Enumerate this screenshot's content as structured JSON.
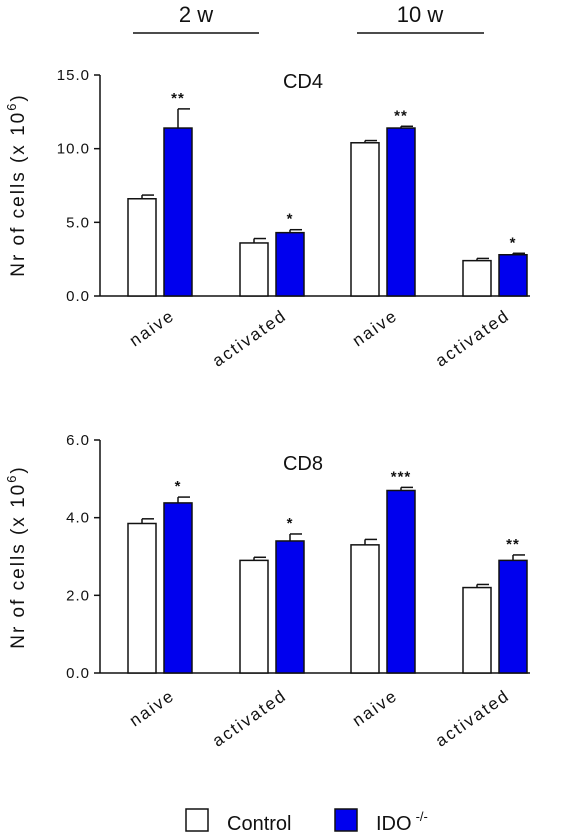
{
  "groups": [
    "2 w",
    "10 w"
  ],
  "legend": {
    "control": {
      "label": "Control",
      "color": "#ffffff"
    },
    "ido": {
      "label": "IDO",
      "superscript": "-/-",
      "color": "#0000ee"
    }
  },
  "ylabel_main": "Nr of cells (x 10",
  "ylabel_exp": "6",
  "ylabel_close": ")",
  "chart_data": [
    {
      "type": "bar",
      "title": "CD4",
      "ylabel": "Nr of cells (x 10^6)",
      "ylim": [
        0,
        15
      ],
      "yticks": [
        "0.0",
        "5.0",
        "10.0",
        "15.0"
      ],
      "ytick_values": [
        0,
        5,
        10,
        15
      ],
      "categories": [
        "naive",
        "activated",
        "naive",
        "activated"
      ],
      "groups": [
        "2 w",
        "2 w",
        "10 w",
        "10 w"
      ],
      "series": [
        {
          "name": "Control",
          "values": [
            6.6,
            3.6,
            10.4,
            2.4
          ],
          "errors": [
            0.25,
            0.3,
            0.15,
            0.15
          ]
        },
        {
          "name": "IDO -/-",
          "values": [
            11.4,
            4.3,
            11.4,
            2.8
          ],
          "errors": [
            1.3,
            0.2,
            0.12,
            0.1
          ]
        }
      ],
      "significance": [
        "**",
        "*",
        "**",
        "*"
      ]
    },
    {
      "type": "bar",
      "title": "CD8",
      "ylabel": "Nr of cells (x 10^6)",
      "ylim": [
        0,
        6
      ],
      "yticks": [
        "0.0",
        "2.0",
        "4.0",
        "6.0"
      ],
      "ytick_values": [
        0,
        2,
        4,
        6
      ],
      "categories": [
        "naive",
        "activated",
        "naive",
        "activated"
      ],
      "groups": [
        "2 w",
        "2 w",
        "10 w",
        "10 w"
      ],
      "series": [
        {
          "name": "Control",
          "values": [
            3.85,
            2.9,
            3.3,
            2.2
          ],
          "errors": [
            0.12,
            0.08,
            0.14,
            0.08
          ]
        },
        {
          "name": "IDO -/-",
          "values": [
            4.38,
            3.4,
            4.7,
            2.9
          ],
          "errors": [
            0.15,
            0.18,
            0.08,
            0.14
          ]
        }
      ],
      "significance": [
        "*",
        "*",
        "***",
        "**"
      ]
    }
  ]
}
